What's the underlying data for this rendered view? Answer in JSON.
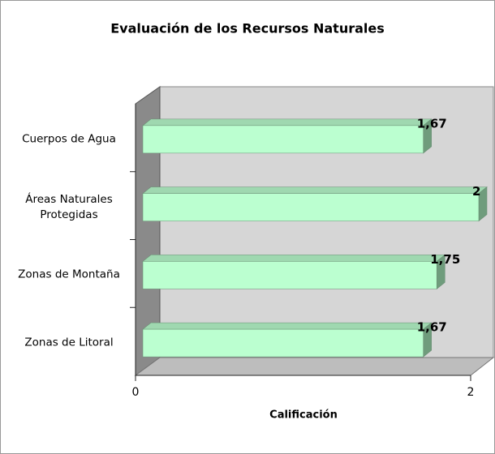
{
  "chart_data": {
    "type": "bar3d_horizontal",
    "title": "Evaluación de los Recursos Naturales",
    "categories": [
      "Cuerpos de Agua",
      "Áreas Naturales Protegidas",
      "Zonas de Montaña",
      "Zonas de Litoral"
    ],
    "values": [
      1.67,
      2,
      1.75,
      1.67
    ],
    "value_labels": [
      "1,67",
      "2",
      "1,75",
      "1,67"
    ],
    "color": "#bbffd0",
    "xlabel": "Calificación",
    "xlim": [
      0,
      2
    ],
    "xticks": [
      0,
      2
    ]
  }
}
